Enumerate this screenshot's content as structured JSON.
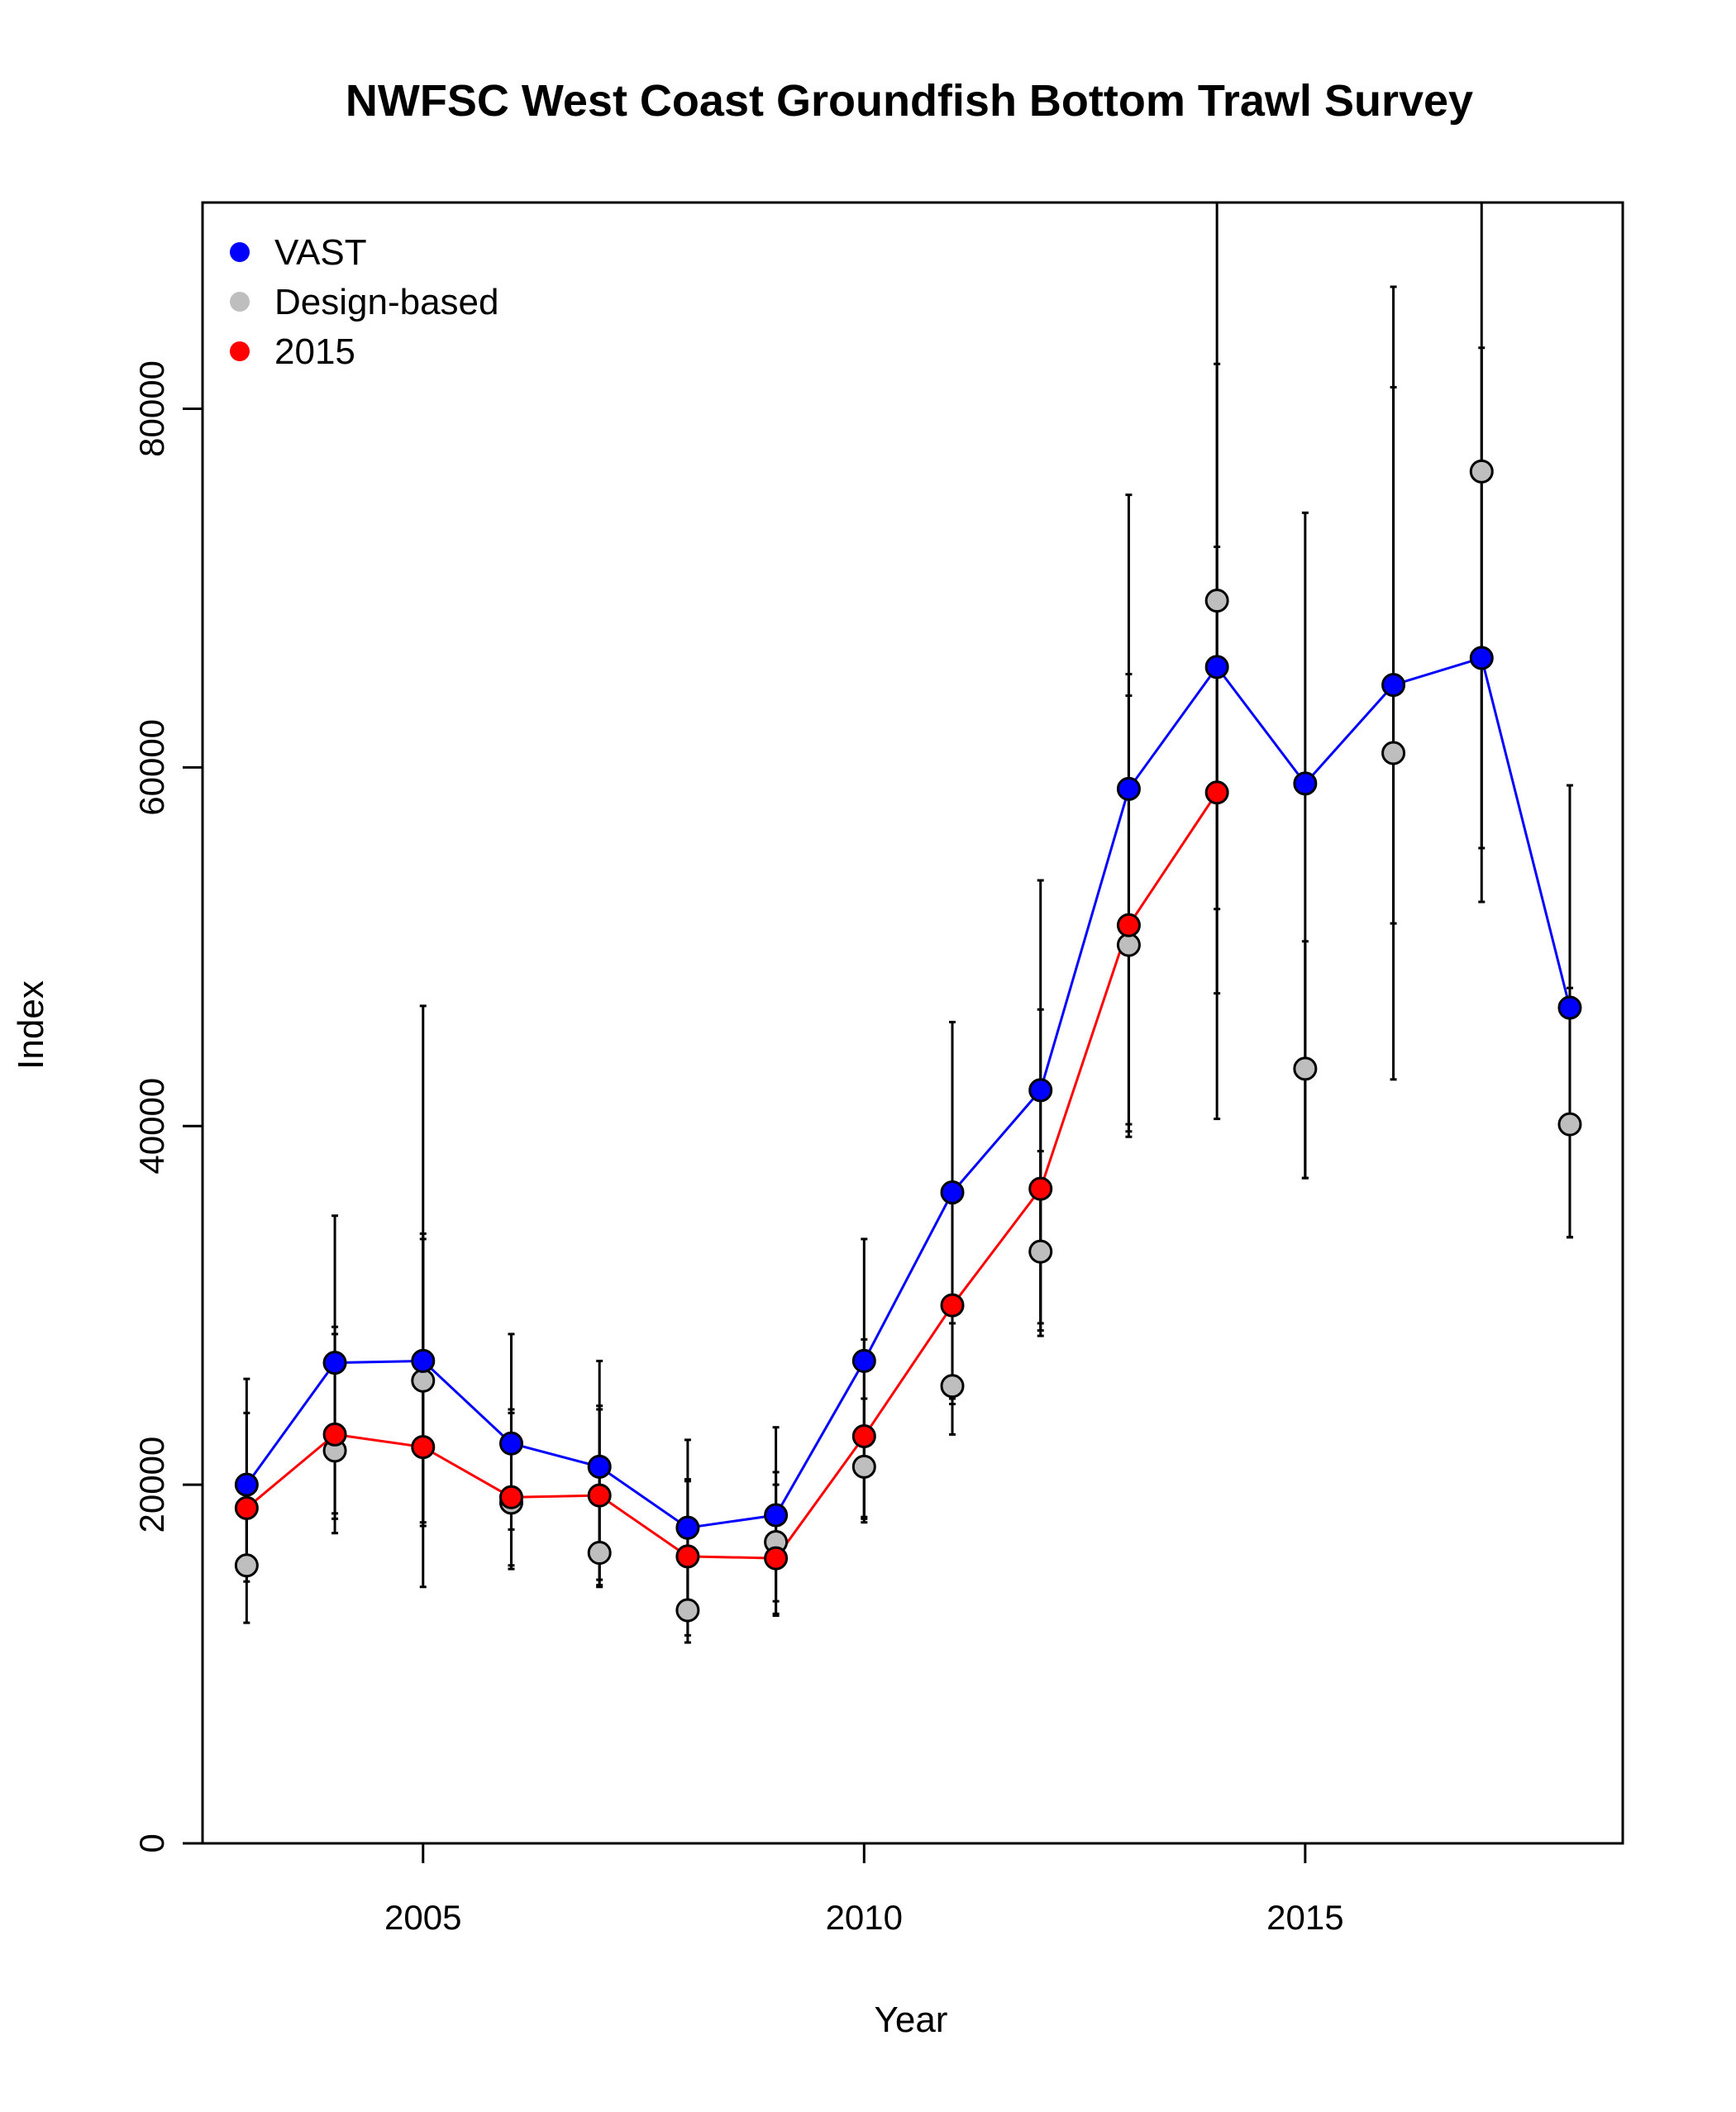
{
  "chart_data": {
    "type": "line",
    "title": "NWFSC West Coast Groundfish Bottom Trawl Survey",
    "xlabel": "Year",
    "ylabel": "Index",
    "xlim": [
      2002.5,
      2018.6
    ],
    "ylim": [
      0,
      91500
    ],
    "x_ticks": [
      2005,
      2010,
      2015
    ],
    "x_tick_labels": [
      "2005",
      "2010",
      "2015"
    ],
    "y_ticks": [
      0,
      20000,
      40000,
      60000,
      80000
    ],
    "y_tick_labels": [
      "0",
      "20000",
      "40000",
      "60000",
      "80000"
    ],
    "grid": false,
    "legend": {
      "position": "top-left",
      "entries": [
        {
          "label": "VAST",
          "color": "#0000ff"
        },
        {
          "label": "Design-based",
          "color": "#bebebe"
        },
        {
          "label": "2015",
          "color": "#ff0000"
        }
      ]
    },
    "series": [
      {
        "name": "VAST",
        "color": "#0000ff",
        "line": true,
        "x": [
          2003,
          2004,
          2005,
          2006,
          2007,
          2008,
          2009,
          2010,
          2011,
          2012,
          2013,
          2014,
          2015,
          2016,
          2017,
          2018
        ],
        "values": [
          20000,
          26800,
          26900,
          22300,
          21000,
          17600,
          18300,
          26900,
          36300,
          42000,
          58800,
          65600,
          59100,
          64600,
          66100,
          46600
        ],
        "lower": [
          15300,
          17300,
          14300,
          15300,
          14400,
          11600,
          12700,
          18100,
          24500,
          29000,
          39400,
          40400,
          37100,
          42600,
          52500,
          33800
        ],
        "upper": [
          25900,
          35000,
          46700,
          28400,
          26900,
          22500,
          23200,
          33700,
          45800,
          53700,
          75200,
          91500,
          74200,
          86800,
          91500,
          59000
        ]
      },
      {
        "name": "Design-based",
        "color": "#bebebe",
        "line": false,
        "x": [
          2003,
          2004,
          2005,
          2006,
          2007,
          2008,
          2009,
          2010,
          2011,
          2012,
          2013,
          2014,
          2015,
          2016,
          2017,
          2018
        ],
        "values": [
          15500,
          21900,
          25800,
          19000,
          16200,
          13000,
          16800,
          21000,
          25500,
          33000,
          50100,
          69300,
          43200,
          60800,
          76500,
          40100
        ],
        "lower": [
          12300,
          18100,
          17700,
          17500,
          14300,
          11200,
          13500,
          18200,
          22800,
          28300,
          40100,
          52100,
          37100,
          51300,
          55500,
          33800
        ],
        "upper": [
          18900,
          28400,
          34000,
          24200,
          24400,
          20200,
          20700,
          28100,
          29000,
          38600,
          65200,
          82500,
          50300,
          81200,
          83400,
          47700
        ]
      },
      {
        "name": "2015",
        "color": "#ff0000",
        "line": true,
        "x": [
          2003,
          2004,
          2005,
          2006,
          2007,
          2008,
          2009,
          2010,
          2011,
          2012,
          2013,
          2014
        ],
        "values": [
          18700,
          22800,
          22100,
          19300,
          19400,
          16000,
          15900,
          22700,
          30000,
          36500,
          51200,
          58600
        ],
        "lower": [
          14600,
          18400,
          17900,
          15500,
          14700,
          12900,
          12800,
          17900,
          24800,
          28600,
          39700,
          47400
        ],
        "upper": [
          24000,
          28800,
          33700,
          24000,
          24200,
          20300,
          20000,
          24800,
          35700,
          46500,
          64000,
          72300
        ]
      }
    ]
  }
}
